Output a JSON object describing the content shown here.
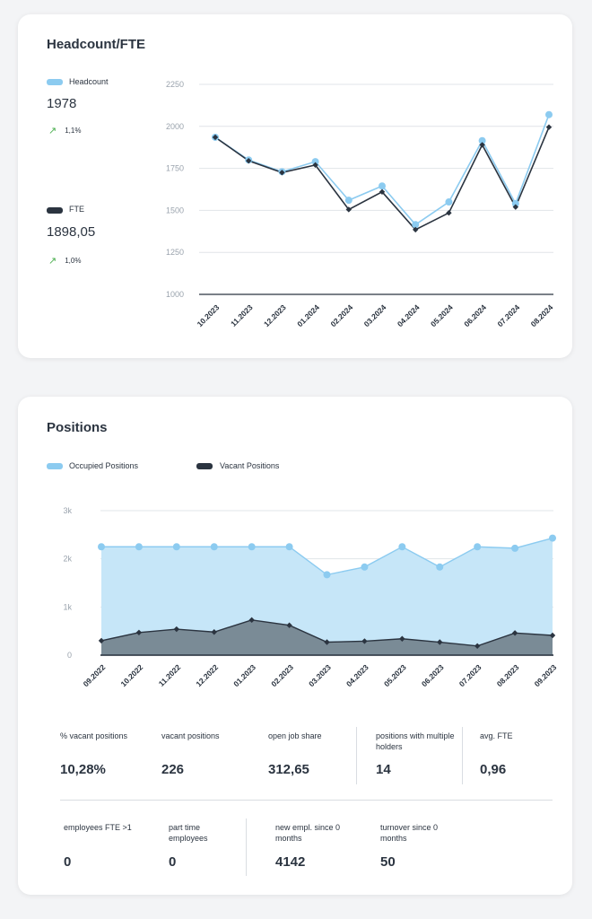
{
  "headcount_card": {
    "title": "Headcount/FTE",
    "headcount": {
      "label": "Headcount",
      "value": "1978",
      "trend": "1,1%",
      "color": "#8ccbf0"
    },
    "fte": {
      "label": "FTE",
      "value": "1898,05",
      "trend": "1,0%",
      "color": "#2b3440"
    }
  },
  "positions_card": {
    "title": "Positions",
    "legend": [
      {
        "label": "Occupied Positions",
        "color": "#8ccbf0"
      },
      {
        "label": "Vacant Positions",
        "color": "#2b3440"
      }
    ],
    "kpis_row1": [
      {
        "label": "% vacant positions",
        "value": "10,28%"
      },
      {
        "label": "vacant positions",
        "value": "226"
      },
      {
        "label": "open job share",
        "value": "312,65"
      },
      {
        "label": "positions with multiple holders",
        "value": "14"
      },
      {
        "label": "avg. FTE",
        "value": "0,96"
      }
    ],
    "kpis_row2": [
      {
        "label": "employees FTE >1",
        "value": "0"
      },
      {
        "label": "part time employees",
        "value": "0"
      },
      {
        "label": "new empl. since 0 months",
        "value": "4142"
      },
      {
        "label": "turnover since 0 months",
        "value": "50"
      }
    ]
  },
  "chart_data": [
    {
      "type": "line",
      "categories": [
        "10.2023",
        "11.2023",
        "12.2023",
        "01.2024",
        "02.2024",
        "03.2024",
        "04.2024",
        "05.2024",
        "06.2024",
        "07.2024",
        "08.2024"
      ],
      "yticks": [
        "2250",
        "2000",
        "1750",
        "1500",
        "1250",
        "1000"
      ],
      "ylim": [
        1000,
        2250
      ],
      "series": [
        {
          "name": "Headcount",
          "color": "#8ccbf0",
          "marker": "circle",
          "values": [
            1935,
            1800,
            1730,
            1790,
            1560,
            1645,
            1415,
            1550,
            1915,
            1540,
            2070
          ]
        },
        {
          "name": "FTE",
          "color": "#2b3440",
          "marker": "diamond",
          "values": [
            1935,
            1795,
            1725,
            1770,
            1505,
            1610,
            1385,
            1485,
            1890,
            1520,
            1995
          ]
        }
      ],
      "grid": true
    },
    {
      "type": "area",
      "categories": [
        "09.2022",
        "10.2022",
        "11.2022",
        "12.2022",
        "01.2023",
        "02.2023",
        "03.2023",
        "04.2023",
        "05.2023",
        "06.2023",
        "07.2023",
        "08.2023",
        "09.2023"
      ],
      "yticks": [
        "3k",
        "2k",
        "1k",
        "0"
      ],
      "ylim": [
        0,
        3000
      ],
      "series": [
        {
          "name": "Occupied Positions",
          "color": "#8ccbf0",
          "fill": "#c6e6f8",
          "marker": "circle",
          "values": [
            2250,
            2250,
            2250,
            2250,
            2250,
            2250,
            1670,
            1830,
            2250,
            1830,
            2250,
            2220,
            2430
          ]
        },
        {
          "name": "Vacant Positions",
          "color": "#2b3440",
          "fill": "#7a8b96",
          "marker": "diamond",
          "values": [
            300,
            470,
            540,
            480,
            730,
            620,
            270,
            290,
            340,
            270,
            190,
            460,
            410
          ]
        }
      ],
      "grid": true
    }
  ]
}
